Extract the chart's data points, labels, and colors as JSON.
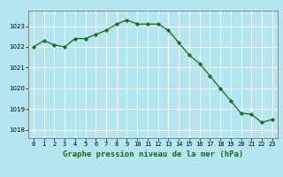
{
  "x": [
    0,
    1,
    2,
    3,
    4,
    5,
    6,
    7,
    8,
    9,
    10,
    11,
    12,
    13,
    14,
    15,
    16,
    17,
    18,
    19,
    20,
    21,
    22,
    23
  ],
  "y": [
    1022.0,
    1022.3,
    1022.1,
    1022.0,
    1022.4,
    1022.4,
    1022.6,
    1022.8,
    1023.1,
    1023.3,
    1023.1,
    1023.1,
    1023.1,
    1022.8,
    1022.2,
    1021.6,
    1021.2,
    1020.6,
    1020.0,
    1019.4,
    1018.8,
    1018.75,
    1018.35,
    1018.5
  ],
  "line_color": "#1a6b1a",
  "marker_color": "#1a6b1a",
  "bg_color": "#b3e6f0",
  "grid_color": "#ffffff",
  "xlabel": "Graphe pression niveau de la mer (hPa)",
  "ylim_min": 1017.6,
  "ylim_max": 1023.75,
  "yticks": [
    1018,
    1019,
    1020,
    1021,
    1022,
    1023
  ],
  "xticks": [
    0,
    1,
    2,
    3,
    4,
    5,
    6,
    7,
    8,
    9,
    10,
    11,
    12,
    13,
    14,
    15,
    16,
    17,
    18,
    19,
    20,
    21,
    22,
    23
  ],
  "tick_fontsize": 5.0,
  "label_fontsize": 6.5,
  "marker_size": 2.2,
  "line_width": 0.9
}
